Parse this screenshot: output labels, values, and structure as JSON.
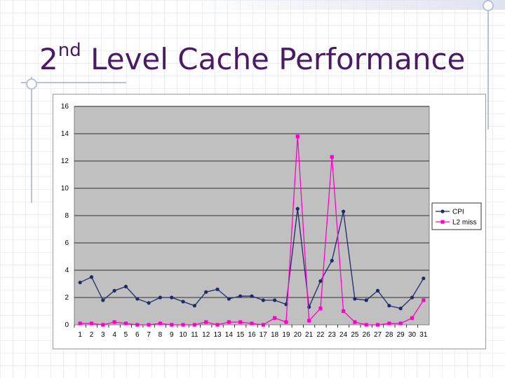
{
  "slide": {
    "title_main": "2",
    "title_sup": "nd",
    "title_rest": " Level Cache Performance"
  },
  "chart_data": {
    "type": "line",
    "title": "",
    "xlabel": "",
    "ylabel": "",
    "categories": [
      "1",
      "2",
      "3",
      "4",
      "5",
      "6",
      "7",
      "8",
      "9",
      "10",
      "11",
      "12",
      "13",
      "14",
      "15",
      "16",
      "17",
      "18",
      "19",
      "20",
      "21",
      "22",
      "23",
      "24",
      "25",
      "26",
      "27",
      "28",
      "29",
      "30",
      "31"
    ],
    "ylim": [
      0,
      16
    ],
    "yticks": [
      0,
      2,
      4,
      6,
      8,
      10,
      12,
      14,
      16
    ],
    "grid": true,
    "legend_position": "right",
    "plot_background": "#c0c0c0",
    "series": [
      {
        "name": "CPI",
        "color": "#1f2a6b",
        "marker": "circle",
        "values": [
          3.1,
          3.5,
          1.8,
          2.5,
          2.8,
          1.9,
          1.6,
          2.0,
          2.0,
          1.7,
          1.4,
          2.4,
          2.6,
          1.9,
          2.1,
          2.1,
          1.8,
          1.8,
          1.5,
          8.5,
          1.3,
          3.2,
          4.7,
          8.3,
          1.9,
          1.8,
          2.5,
          1.4,
          1.2,
          2.0,
          3.4
        ]
      },
      {
        "name": "L2 miss",
        "color": "#ff00cc",
        "marker": "square",
        "values": [
          0.1,
          0.1,
          0.0,
          0.2,
          0.1,
          0.0,
          0.0,
          0.1,
          0.0,
          0.0,
          0.0,
          0.2,
          0.0,
          0.2,
          0.2,
          0.1,
          0.0,
          0.5,
          0.2,
          13.8,
          0.3,
          1.2,
          12.3,
          1.0,
          0.2,
          0.0,
          0.0,
          0.1,
          0.1,
          0.5,
          1.8
        ]
      }
    ]
  }
}
